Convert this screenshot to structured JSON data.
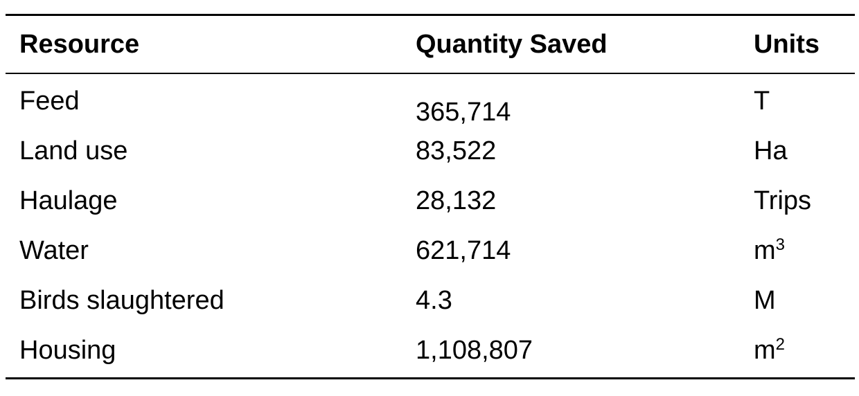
{
  "table": {
    "headers": {
      "resource": "Resource",
      "quantity": "Quantity Saved",
      "units": "Units"
    },
    "rows": [
      {
        "resource": "Feed",
        "quantity": "365,714",
        "unit_base": "T",
        "unit_sup": ""
      },
      {
        "resource": "Land use",
        "quantity": "83,522",
        "unit_base": "Ha",
        "unit_sup": ""
      },
      {
        "resource": "Haulage",
        "quantity": "28,132",
        "unit_base": "Trips",
        "unit_sup": ""
      },
      {
        "resource": "Water",
        "quantity": "621,714",
        "unit_base": "m",
        "unit_sup": "3"
      },
      {
        "resource": "Birds slaughtered",
        "quantity": "4.3",
        "unit_base": "M",
        "unit_sup": ""
      },
      {
        "resource": "Housing",
        "quantity": "1,108,807",
        "unit_base": "m",
        "unit_sup": "2"
      }
    ]
  }
}
